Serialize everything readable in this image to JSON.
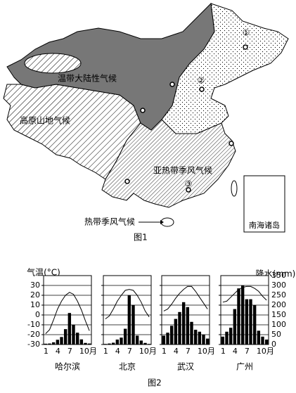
{
  "map": {
    "labels": [
      "温带大陆性气候",
      "高原山地气候",
      "亚热带季风气候",
      "热带季风气候"
    ],
    "markers": [
      "①",
      "②",
      "③"
    ],
    "inset_label": "南海诸岛",
    "caption": "图1"
  },
  "figure2": {
    "left_axis_label": "气温(°C)",
    "right_axis_label": "降水(mm)",
    "caption": "图2"
  },
  "chart_data": [
    {
      "type": "combo",
      "title": "哈尔滨",
      "categories": [
        "1",
        null,
        null,
        "4",
        null,
        null,
        "7",
        null,
        null,
        "10月",
        null,
        null
      ],
      "series": [
        {
          "type": "line",
          "color": "#000000",
          "values": [
            -19,
            -15,
            -5,
            6,
            14,
            20,
            23,
            21,
            14,
            5,
            -6,
            -16
          ]
        },
        {
          "type": "bar",
          "axis": "y2",
          "color": "#000000",
          "values": [
            4,
            5,
            11,
            24,
            38,
            78,
            160,
            100,
            60,
            26,
            8,
            5
          ]
        }
      ],
      "ylim": [
        -30,
        40
      ],
      "yticks": [
        -30,
        -20,
        -10,
        0,
        10,
        20,
        30
      ],
      "y2lim": [
        0,
        350
      ],
      "y2ticks": [
        0,
        50,
        100,
        150,
        200,
        250,
        300,
        350
      ]
    },
    {
      "type": "combo",
      "title": "北京",
      "categories": [
        "1",
        null,
        null,
        "4",
        null,
        null,
        "7",
        null,
        null,
        "10月",
        null,
        null
      ],
      "series": [
        {
          "type": "line",
          "color": "#000000",
          "values": [
            -4,
            -1,
            6,
            14,
            20,
            25,
            26,
            25,
            20,
            13,
            4,
            -2
          ]
        },
        {
          "type": "bar",
          "axis": "y2",
          "color": "#000000",
          "values": [
            3,
            5,
            9,
            25,
            35,
            80,
            250,
            200,
            45,
            20,
            8,
            3
          ]
        }
      ],
      "ylim": [
        -30,
        40
      ],
      "yticks": [
        -30,
        -20,
        -10,
        0,
        10,
        20,
        30
      ],
      "y2lim": [
        0,
        350
      ],
      "y2ticks": [
        0,
        50,
        100,
        150,
        200,
        250,
        300,
        350
      ]
    },
    {
      "type": "combo",
      "title": "武汉",
      "categories": [
        "1",
        null,
        null,
        "4",
        null,
        null,
        "7",
        null,
        null,
        "10月",
        null,
        null
      ],
      "series": [
        {
          "type": "line",
          "color": "#000000",
          "values": [
            4,
            6,
            11,
            17,
            22,
            26,
            29,
            29,
            24,
            18,
            12,
            6
          ]
        },
        {
          "type": "bar",
          "axis": "y2",
          "color": "#000000",
          "values": [
            45,
            60,
            95,
            130,
            165,
            215,
            190,
            115,
            75,
            65,
            50,
            30
          ]
        }
      ],
      "ylim": [
        -30,
        40
      ],
      "yticks": [
        -30,
        -20,
        -10,
        0,
        10,
        20,
        30
      ],
      "y2lim": [
        0,
        350
      ],
      "y2ticks": [
        0,
        50,
        100,
        150,
        200,
        250,
        300,
        350
      ]
    },
    {
      "type": "combo",
      "title": "广州",
      "categories": [
        "1",
        null,
        null,
        "4",
        null,
        null,
        "7",
        null,
        null,
        "10月",
        null,
        null
      ],
      "series": [
        {
          "type": "line",
          "color": "#000000",
          "values": [
            13,
            14,
            18,
            22,
            26,
            28,
            29,
            29,
            27,
            24,
            19,
            15
          ]
        },
        {
          "type": "bar",
          "axis": "y2",
          "color": "#000000",
          "values": [
            40,
            65,
            85,
            180,
            285,
            300,
            230,
            230,
            200,
            70,
            40,
            25
          ]
        }
      ],
      "ylim": [
        -30,
        40
      ],
      "yticks": [
        -30,
        -20,
        -10,
        0,
        10,
        20,
        30
      ],
      "y2lim": [
        0,
        350
      ],
      "y2ticks": [
        0,
        50,
        100,
        150,
        200,
        250,
        300,
        350
      ]
    }
  ]
}
